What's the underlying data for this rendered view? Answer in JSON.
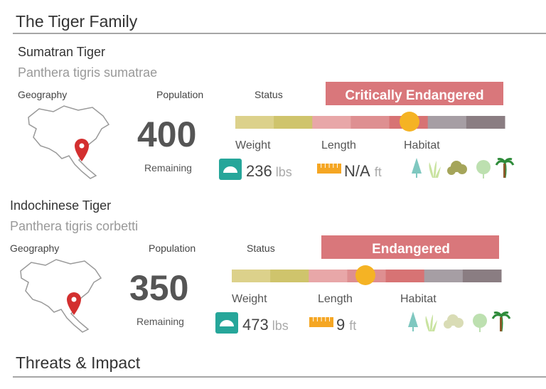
{
  "header": {
    "title": "The Tiger Family"
  },
  "labels": {
    "geography": "Geography",
    "population": "Population",
    "status": "Status",
    "remaining": "Remaining",
    "weight": "Weight",
    "length": "Length",
    "habitat": "Habitat"
  },
  "tigers": [
    {
      "name": "Sumatran Tiger",
      "scientific_name": "Panthera tigris sumatrae",
      "population": 400,
      "status": "Critically Endangered",
      "weight": 236,
      "weight_unit": "lbs",
      "length": "N/A",
      "length_unit": "ft"
    },
    {
      "name": "Indochinese Tiger",
      "scientific_name": "Panthera tigris corbetti",
      "population": 350,
      "status": "Endangered",
      "weight": 473,
      "weight_unit": "lbs",
      "length": 9,
      "length_unit": "ft"
    }
  ],
  "footer": {
    "title": "Threats & Impact"
  }
}
